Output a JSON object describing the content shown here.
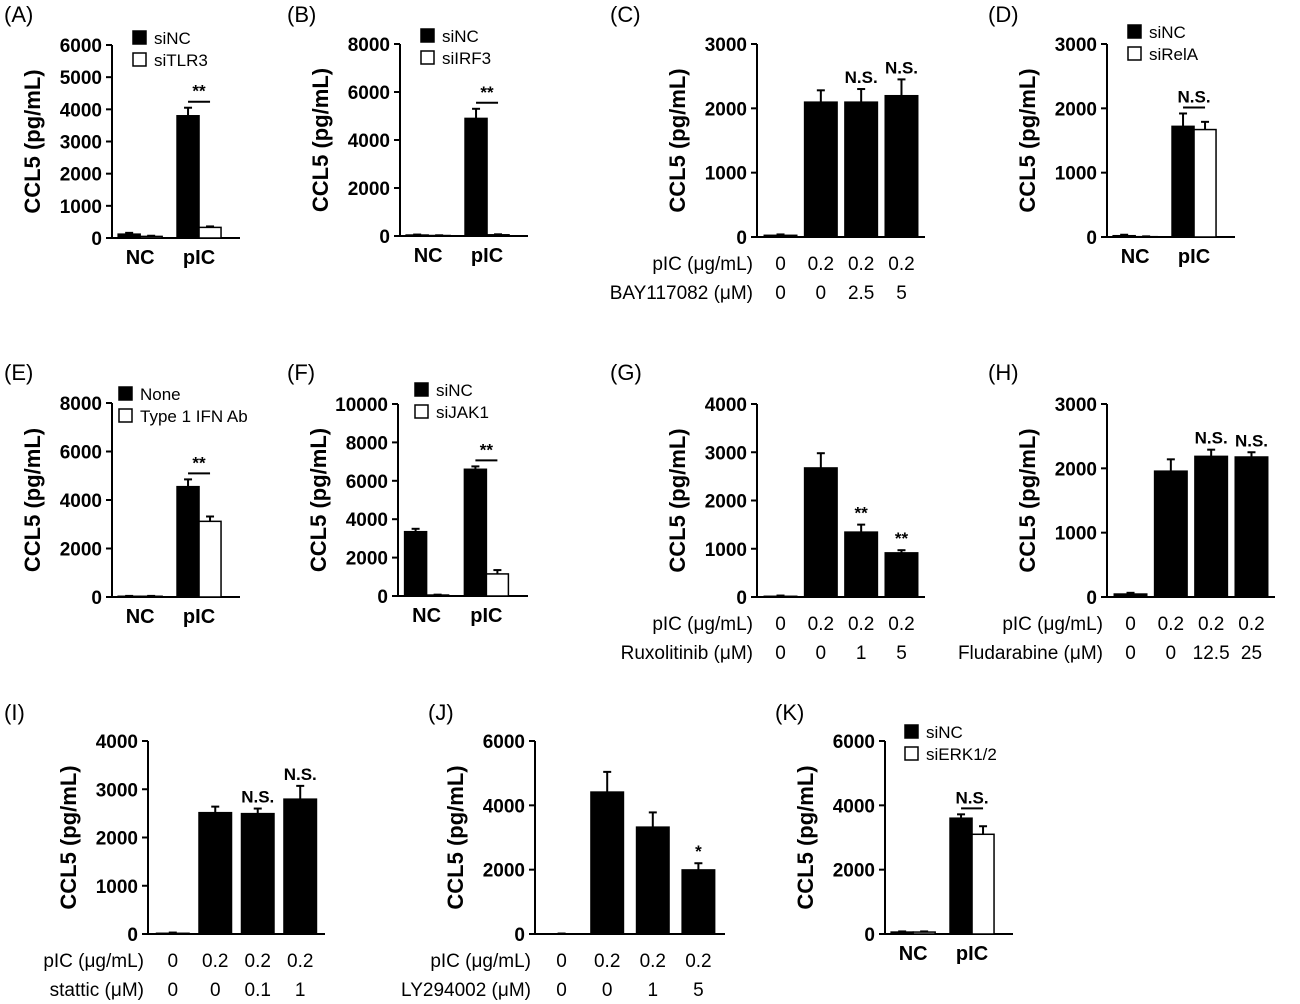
{
  "figure": {
    "y_axis_label": "CCL5 (pg/mL)",
    "colors": {
      "series_filled": "#000000",
      "series_open": "#ffffff",
      "axis": "#000000"
    }
  },
  "chart_data": [
    {
      "panel": "(A)",
      "type": "bar",
      "ylabel": "CCL5 (pg/mL)",
      "ylim": [
        0,
        6000
      ],
      "yticks": [
        "0",
        "1000",
        "2000",
        "3000",
        "4000",
        "5000",
        "6000"
      ],
      "categories": [
        "NC",
        "pIC"
      ],
      "series": [
        {
          "name": "siNC",
          "fill": "#000000",
          "values": [
            120,
            3800
          ],
          "errors": [
            40,
            250
          ]
        },
        {
          "name": "siTLR3",
          "fill": "#ffffff",
          "values": [
            50,
            330
          ],
          "errors": [
            20,
            30
          ]
        }
      ],
      "annotations": [
        {
          "category": 1,
          "text": "**",
          "bracket": true
        }
      ]
    },
    {
      "panel": "(B)",
      "type": "bar",
      "ylabel": "CCL5 (pg/mL)",
      "ylim": [
        0,
        8000
      ],
      "yticks": [
        "0",
        "2000",
        "4000",
        "6000",
        "8000"
      ],
      "categories": [
        "NC",
        "pIC"
      ],
      "series": [
        {
          "name": "siNC",
          "fill": "#000000",
          "values": [
            40,
            4900
          ],
          "errors": [
            20,
            400
          ]
        },
        {
          "name": "siIRF3",
          "fill": "#ffffff",
          "values": [
            20,
            50
          ],
          "errors": [
            10,
            20
          ]
        }
      ],
      "annotations": [
        {
          "category": 1,
          "text": "**",
          "bracket": true
        }
      ]
    },
    {
      "panel": "(C)",
      "type": "bar",
      "ylabel": "CCL5 (pg/mL)",
      "ylim": [
        0,
        3000
      ],
      "yticks": [
        "0",
        "1000",
        "2000",
        "3000"
      ],
      "values": [
        30,
        2100,
        2100,
        2200
      ],
      "errors": [
        10,
        180,
        200,
        250
      ],
      "labels": [
        "",
        "",
        "N.S.",
        "N.S."
      ],
      "conditions": [
        {
          "label": "pIC (μg/mL)",
          "values": [
            "0",
            "0.2",
            "0.2",
            "0.2"
          ]
        },
        {
          "label": "BAY117082 (μM)",
          "values": [
            "0",
            "0",
            "2.5",
            "5"
          ]
        }
      ]
    },
    {
      "panel": "(D)",
      "type": "bar",
      "ylabel": "CCL5 (pg/mL)",
      "ylim": [
        0,
        3000
      ],
      "yticks": [
        "0",
        "1000",
        "2000",
        "3000"
      ],
      "categories": [
        "NC",
        "pIC"
      ],
      "series": [
        {
          "name": "siNC",
          "fill": "#000000",
          "values": [
            20,
            1720
          ],
          "errors": [
            15,
            200
          ]
        },
        {
          "name": "siRelA",
          "fill": "#ffffff",
          "values": [
            5,
            1670
          ],
          "errors": [
            5,
            120
          ]
        }
      ],
      "annotations": [
        {
          "category": 1,
          "text": "N.S.",
          "bracket": true
        }
      ]
    },
    {
      "panel": "(E)",
      "type": "bar",
      "ylabel": "CCL5 (pg/mL)",
      "ylim": [
        0,
        8000
      ],
      "yticks": [
        "0",
        "2000",
        "4000",
        "6000",
        "8000"
      ],
      "categories": [
        "NC",
        "pIC"
      ],
      "series": [
        {
          "name": "None",
          "fill": "#000000",
          "values": [
            30,
            4550
          ],
          "errors": [
            15,
            300
          ]
        },
        {
          "name": "Type 1 IFN Ab",
          "fill": "#ffffff",
          "values": [
            30,
            3120
          ],
          "errors": [
            15,
            200
          ]
        }
      ],
      "annotations": [
        {
          "category": 1,
          "text": "**",
          "bracket": true
        }
      ]
    },
    {
      "panel": "(F)",
      "type": "bar",
      "ylabel": "CCL5 (pg/mL)",
      "ylim": [
        0,
        10000
      ],
      "yticks": [
        "0",
        "2000",
        "4000",
        "6000",
        "8000",
        "10000"
      ],
      "categories": [
        "NC",
        "pIC"
      ],
      "series": [
        {
          "name": "siNC",
          "fill": "#000000",
          "values": [
            3350,
            6600
          ],
          "errors": [
            150,
            150
          ]
        },
        {
          "name": "siJAK1",
          "fill": "#ffffff",
          "values": [
            50,
            1150
          ],
          "errors": [
            20,
            200
          ]
        }
      ],
      "annotations": [
        {
          "category": 1,
          "text": "**",
          "bracket": true
        }
      ]
    },
    {
      "panel": "(G)",
      "type": "bar",
      "ylabel": "CCL5 (pg/mL)",
      "ylim": [
        0,
        4000
      ],
      "yticks": [
        "0",
        "1000",
        "2000",
        "3000",
        "4000"
      ],
      "values": [
        20,
        2680,
        1350,
        920
      ],
      "errors": [
        10,
        300,
        150,
        50
      ],
      "labels": [
        "",
        "",
        "**",
        "**"
      ],
      "conditions": [
        {
          "label": "pIC (μg/mL)",
          "values": [
            "0",
            "0.2",
            "0.2",
            "0.2"
          ]
        },
        {
          "label": "Ruxolitinib (μM)",
          "values": [
            "0",
            "0",
            "1",
            "5"
          ]
        }
      ]
    },
    {
      "panel": "(H)",
      "type": "bar",
      "ylabel": "CCL5 (pg/mL)",
      "ylim": [
        0,
        3000
      ],
      "yticks": [
        "0",
        "1000",
        "2000",
        "3000"
      ],
      "values": [
        50,
        1960,
        2190,
        2180
      ],
      "errors": [
        15,
        180,
        100,
        70
      ],
      "labels": [
        "",
        "",
        "N.S.",
        "N.S."
      ],
      "conditions": [
        {
          "label": "pIC (μg/mL)",
          "values": [
            "0",
            "0.2",
            "0.2",
            "0.2"
          ]
        },
        {
          "label": "Fludarabine (μM)",
          "values": [
            "0",
            "0",
            "12.5",
            "25"
          ]
        }
      ]
    },
    {
      "panel": "(I)",
      "type": "bar",
      "ylabel": "CCL5 (pg/mL)",
      "ylim": [
        0,
        4000
      ],
      "yticks": [
        "0",
        "1000",
        "2000",
        "3000",
        "4000"
      ],
      "values": [
        20,
        2520,
        2500,
        2800
      ],
      "errors": [
        10,
        120,
        100,
        270
      ],
      "labels": [
        "",
        "",
        "N.S.",
        "N.S."
      ],
      "conditions": [
        {
          "label": "pIC (μg/mL)",
          "values": [
            "0",
            "0.2",
            "0.2",
            "0.2"
          ]
        },
        {
          "label": "stattic (μM)",
          "values": [
            "0",
            "0",
            "0.1",
            "1"
          ]
        }
      ]
    },
    {
      "panel": "(J)",
      "type": "bar",
      "ylabel": "CCL5 (pg/mL)",
      "ylim": [
        0,
        6000
      ],
      "yticks": [
        "0",
        "2000",
        "4000",
        "6000"
      ],
      "values": [
        10,
        4420,
        3330,
        2000
      ],
      "errors": [
        5,
        620,
        450,
        200
      ],
      "labels": [
        "",
        "",
        "",
        "*"
      ],
      "conditions": [
        {
          "label": "pIC (μg/mL)",
          "values": [
            "0",
            "0.2",
            "0.2",
            "0.2"
          ]
        },
        {
          "label": "LY294002 (μM)",
          "values": [
            "0",
            "0",
            "1",
            "5"
          ]
        }
      ]
    },
    {
      "panel": "(K)",
      "type": "bar",
      "ylabel": "CCL5 (pg/mL)",
      "ylim": [
        0,
        6000
      ],
      "yticks": [
        "0",
        "2000",
        "4000",
        "6000"
      ],
      "categories": [
        "NC",
        "pIC"
      ],
      "series": [
        {
          "name": "siNC",
          "fill": "#000000",
          "values": [
            60,
            3600
          ],
          "errors": [
            20,
            120
          ]
        },
        {
          "name": "siERK1/2",
          "fill": "#ffffff",
          "values": [
            60,
            3100
          ],
          "errors": [
            20,
            250
          ]
        }
      ],
      "annotations": [
        {
          "category": 1,
          "text": "N.S.",
          "bracket": true
        }
      ]
    }
  ]
}
